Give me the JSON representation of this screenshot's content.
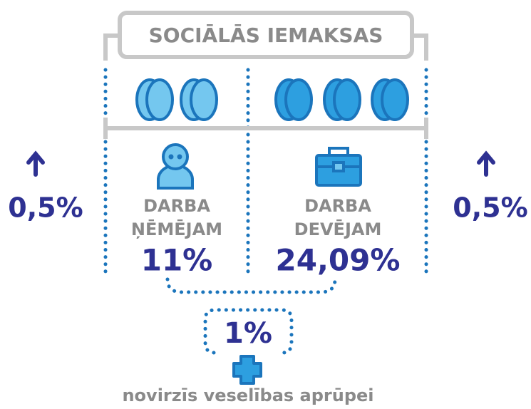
{
  "title": "SOCIĀLĀS IEMAKSAS",
  "left_change": "0,5%",
  "right_change": "0,5%",
  "employee": {
    "label": [
      "DARBA",
      "ŅĒMĒJAM"
    ],
    "rate": "11%"
  },
  "employer": {
    "label": [
      "DARBA",
      "DEVĒJAM"
    ],
    "rate": "24,09%"
  },
  "health": {
    "rate": "1%",
    "caption": "novirzīs veselības aprūpei"
  }
}
